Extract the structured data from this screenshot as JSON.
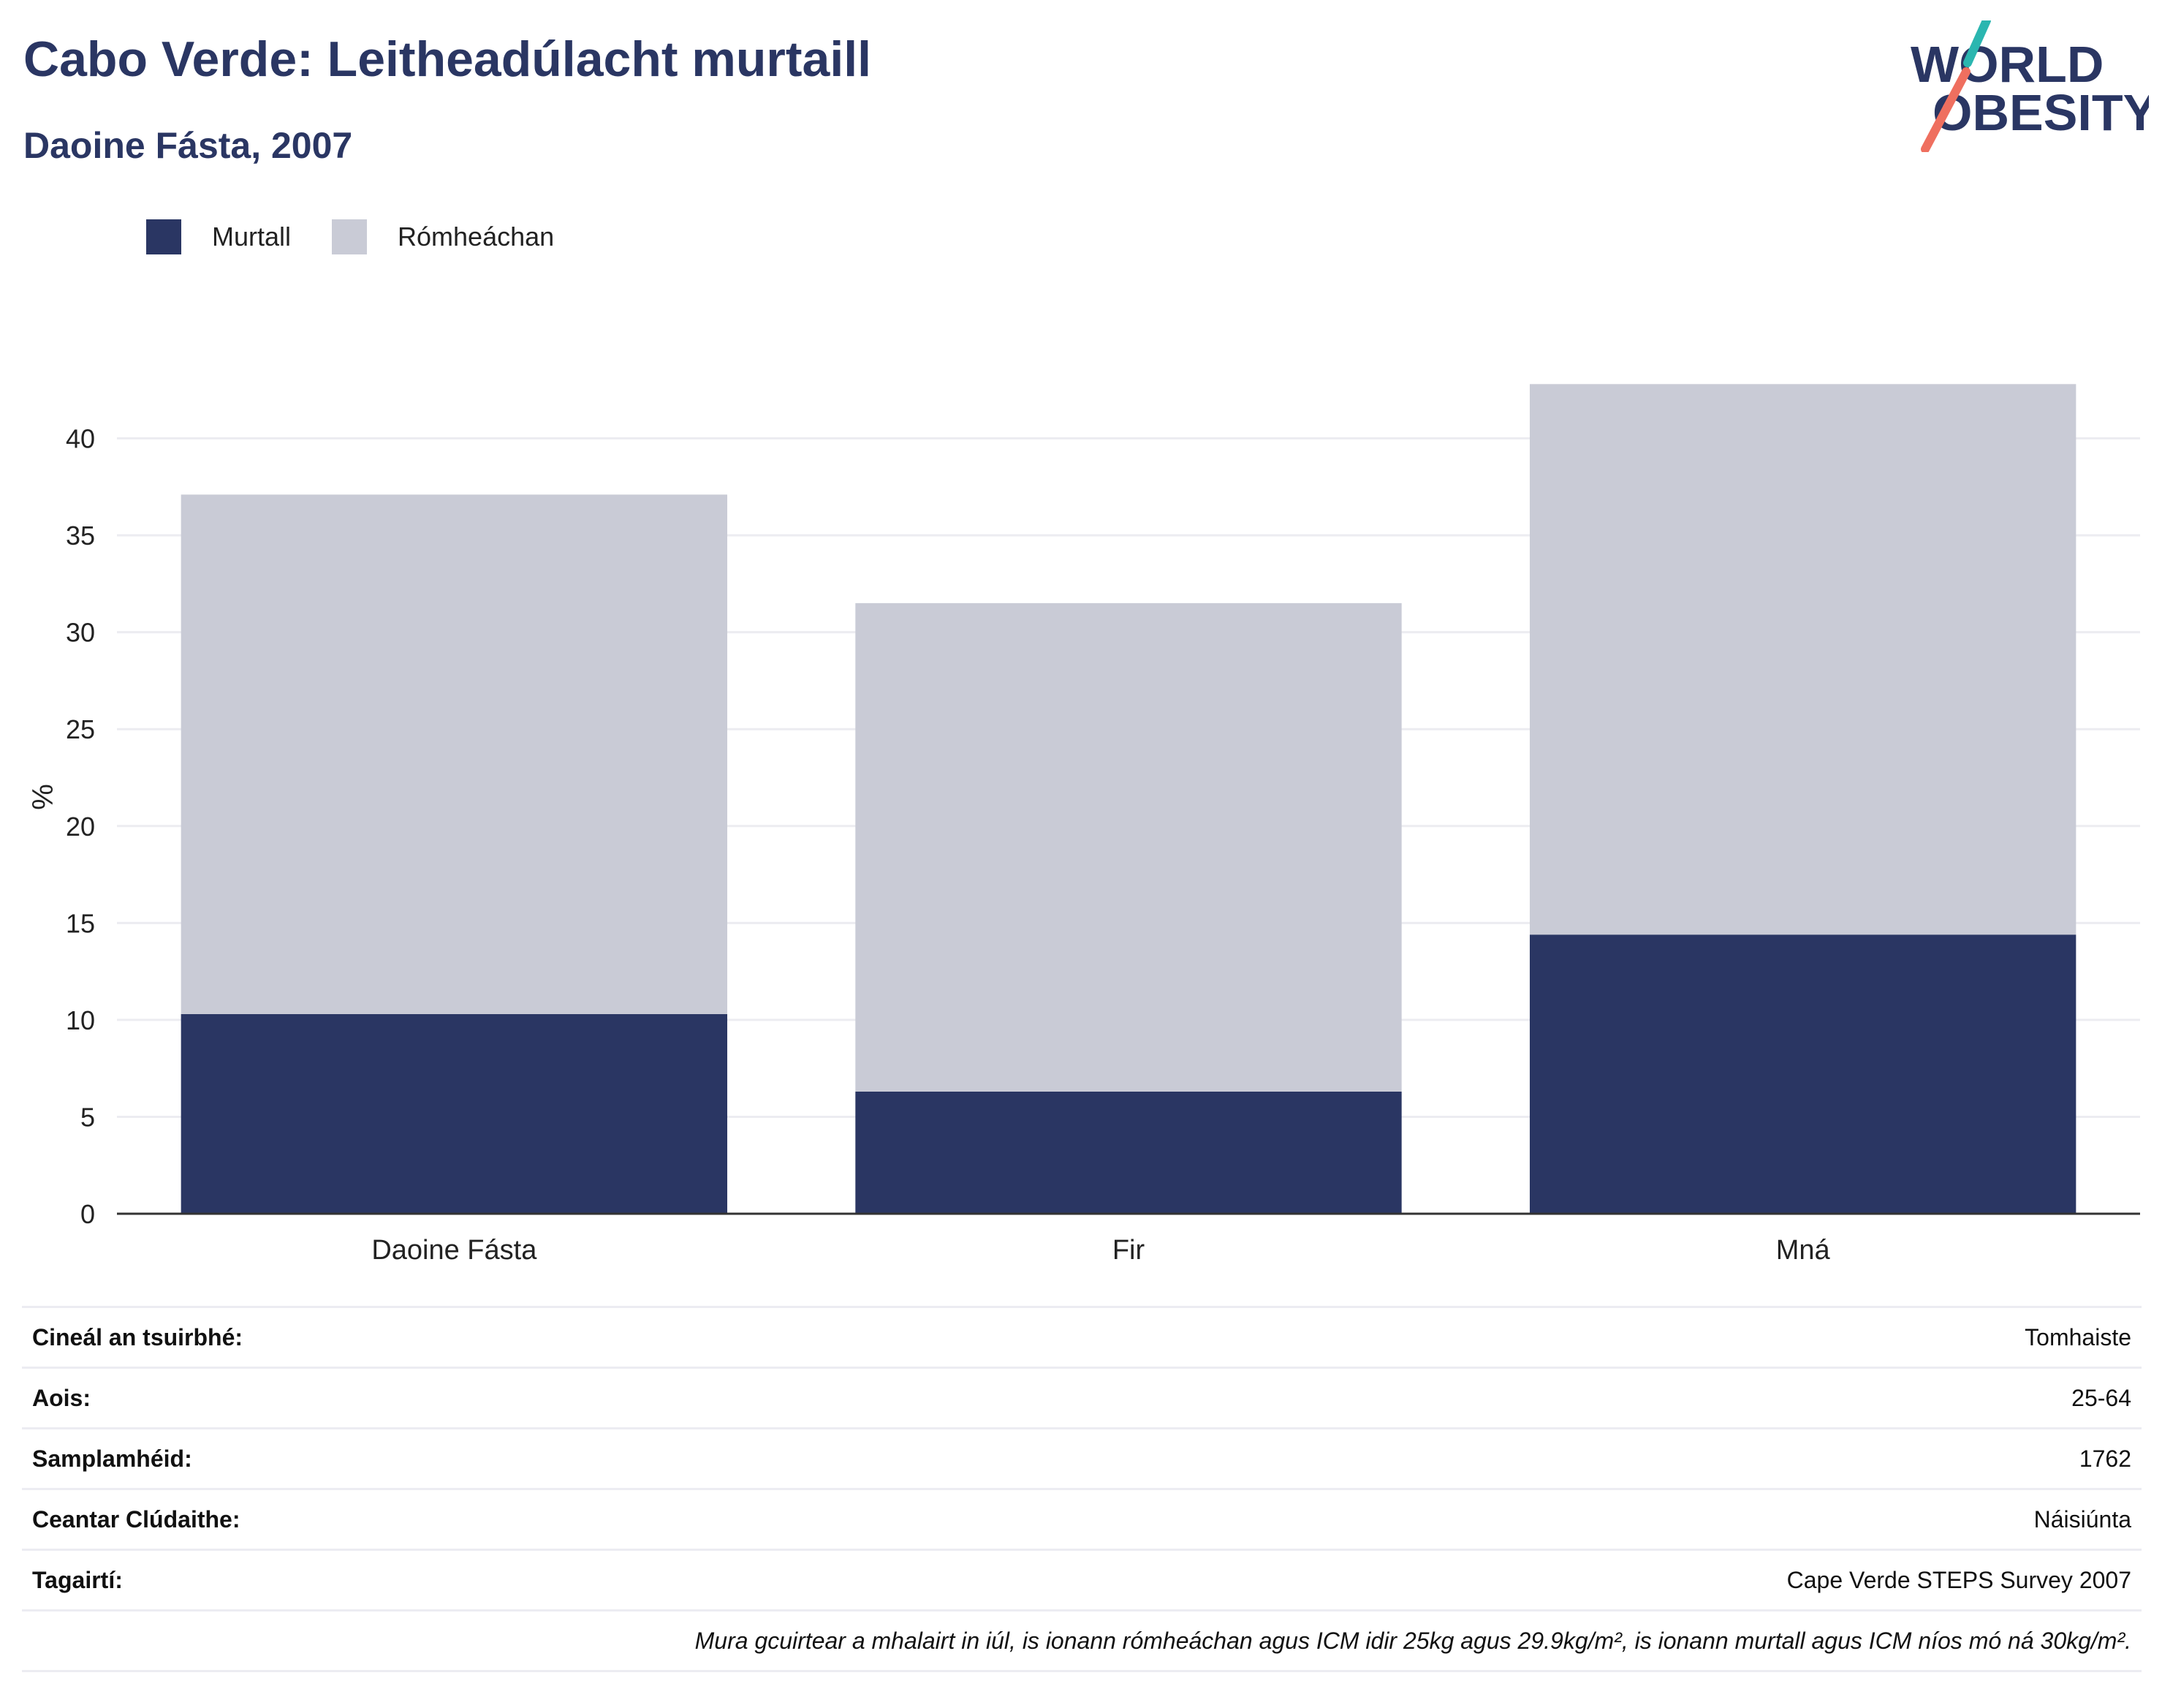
{
  "header": {
    "title": "Cabo Verde: Leitheadúlacht murtaill",
    "subtitle": "Daoine Fásta, 2007"
  },
  "logo": {
    "line1": "WORLD",
    "line2": "OBESITY",
    "accent_teal": "#2bb6b0",
    "accent_coral": "#ef6f5f"
  },
  "legend": [
    {
      "label": "Murtall",
      "color": "#2a3663"
    },
    {
      "label": "Rómheáchan",
      "color": "#c9cbd6"
    }
  ],
  "chart_data": {
    "type": "bar",
    "stacked": true,
    "categories": [
      "Daoine Fásta",
      "Fir",
      "Mná"
    ],
    "series": [
      {
        "name": "Murtall",
        "color": "#2a3663",
        "values": [
          10.3,
          6.3,
          14.4
        ]
      },
      {
        "name": "Rómheáchan",
        "color": "#c9cbd6",
        "values": [
          26.8,
          25.2,
          28.4
        ]
      }
    ],
    "ylabel": "%",
    "ylim": [
      0,
      43
    ],
    "yticks": [
      0,
      5,
      10,
      15,
      20,
      25,
      30,
      35,
      40
    ],
    "grid": true
  },
  "info": [
    {
      "label": "Cineál an tsuirbhé:",
      "value": "Tomhaiste"
    },
    {
      "label": "Aois:",
      "value": "25-64"
    },
    {
      "label": "Samplamhéid:",
      "value": "1762"
    },
    {
      "label": "Ceantar Clúdaithe:",
      "value": "Náisiúnta"
    },
    {
      "label": "Tagairtí:",
      "value": "Cape Verde STEPS Survey 2007"
    }
  ],
  "footnote": "Mura gcuirtear a mhalairt in iúl, is ionann rómheáchan agus ICM idir 25kg agus 29.9kg/m², is ionann murtall agus ICM níos mó ná 30kg/m²."
}
